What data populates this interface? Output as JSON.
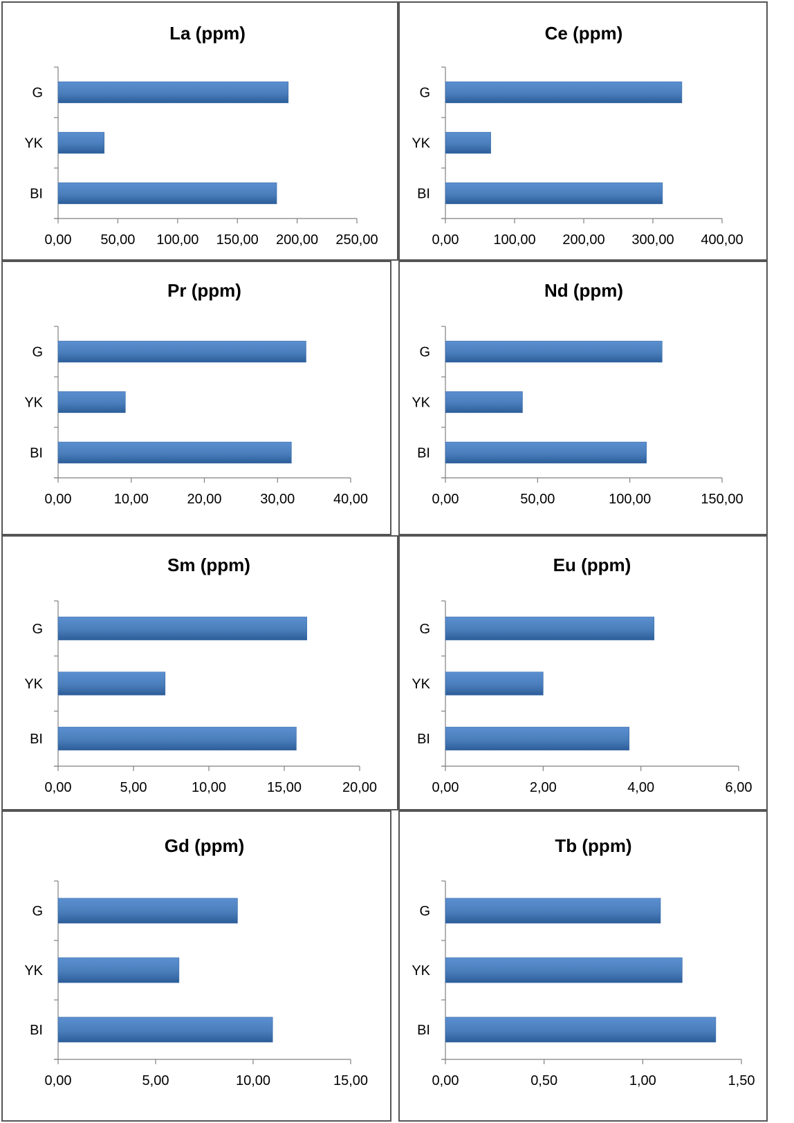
{
  "chart_data": [
    {
      "type": "bar",
      "orientation": "horizontal",
      "title": "La (ppm)",
      "categories": [
        "BI",
        "YK",
        "G"
      ],
      "values": [
        182.9,
        38.6,
        192.6
      ],
      "xlim": [
        0,
        250
      ],
      "ticks": [
        "0,00",
        "50,00",
        "100,00",
        "150,00",
        "200,00",
        "250,00"
      ],
      "color": "#4a7ebb"
    },
    {
      "type": "bar",
      "orientation": "horizontal",
      "title": "Ce (ppm)",
      "categories": [
        "BI",
        "YK",
        "G"
      ],
      "values": [
        313.9,
        65.6,
        341.9
      ],
      "xlim": [
        0,
        400
      ],
      "ticks": [
        "0,00",
        "100,00",
        "200,00",
        "300,00",
        "400,00"
      ],
      "color": "#4a7ebb"
    },
    {
      "type": "bar",
      "orientation": "horizontal",
      "title": "Pr (ppm)",
      "categories": [
        "BI",
        "YK",
        "G"
      ],
      "values": [
        31.9,
        9.2,
        33.9
      ],
      "xlim": [
        0,
        40
      ],
      "ticks": [
        "0,00",
        "10,00",
        "20,00",
        "30,00",
        "40,00"
      ],
      "color": "#4a7ebb"
    },
    {
      "type": "bar",
      "orientation": "horizontal",
      "title": "Nd (ppm)",
      "categories": [
        "BI",
        "YK",
        "G"
      ],
      "values": [
        109.0,
        41.8,
        117.5
      ],
      "xlim": [
        0,
        150
      ],
      "ticks": [
        "0,00",
        "50,00",
        "100,00",
        "150,00"
      ],
      "color": "#4a7ebb"
    },
    {
      "type": "bar",
      "orientation": "horizontal",
      "title": "Sm (ppm)",
      "categories": [
        "BI",
        "YK",
        "G"
      ],
      "values": [
        15.8,
        7.1,
        16.5
      ],
      "xlim": [
        0,
        20
      ],
      "ticks": [
        "0,00",
        "5,00",
        "10,00",
        "15,00",
        "20,00"
      ],
      "color": "#4a7ebb"
    },
    {
      "type": "bar",
      "orientation": "horizontal",
      "title": "Eu (ppm)",
      "categories": [
        "BI",
        "YK",
        "G"
      ],
      "values": [
        3.76,
        2.0,
        4.27
      ],
      "xlim": [
        0,
        6
      ],
      "ticks": [
        "0,00",
        "2,00",
        "4,00",
        "6,00"
      ],
      "color": "#4a7ebb"
    },
    {
      "type": "bar",
      "orientation": "horizontal",
      "title": "Gd (ppm)",
      "categories": [
        "BI",
        "YK",
        "G"
      ],
      "values": [
        11.0,
        6.2,
        9.2
      ],
      "xlim": [
        0,
        15
      ],
      "ticks": [
        "0,00",
        "5,00",
        "10,00",
        "15,00"
      ],
      "color": "#4a7ebb"
    },
    {
      "type": "bar",
      "orientation": "horizontal",
      "title": "Tb (ppm)",
      "categories": [
        "BI",
        "YK",
        "G"
      ],
      "values": [
        1.37,
        1.2,
        1.09
      ],
      "xlim": [
        0,
        1.5
      ],
      "ticks": [
        "0,00",
        "0,50",
        "1,00",
        "1,50"
      ],
      "color": "#4a7ebb"
    }
  ]
}
